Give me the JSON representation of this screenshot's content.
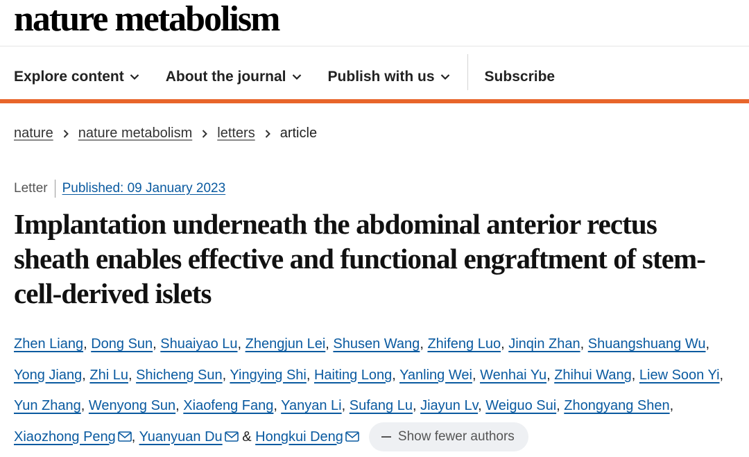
{
  "header": {
    "logo": "nature metabolism",
    "nav": [
      "Explore content",
      "About the journal",
      "Publish with us",
      "Subscribe"
    ]
  },
  "breadcrumbs": [
    "nature",
    "nature metabolism",
    "letters",
    "article"
  ],
  "article": {
    "type": "Letter",
    "published": "Published: 09 January 2023",
    "title": "Implantation underneath the abdominal anterior rectus sheath enables effective and functional engraftment of stem-cell-derived islets",
    "separator": ",",
    "final_separator": "&",
    "authors": [
      {
        "name": "Zhen Liang"
      },
      {
        "name": "Dong Sun"
      },
      {
        "name": "Shuaiyao Lu"
      },
      {
        "name": "Zhengjun Lei"
      },
      {
        "name": "Shusen Wang"
      },
      {
        "name": "Zhifeng Luo"
      },
      {
        "name": "Jinqin Zhan"
      },
      {
        "name": "Shuangshuang Wu"
      },
      {
        "name": "Yong Jiang"
      },
      {
        "name": "Zhi Lu"
      },
      {
        "name": "Shicheng Sun"
      },
      {
        "name": "Yingying Shi"
      },
      {
        "name": "Haiting Long"
      },
      {
        "name": "Yanling Wei"
      },
      {
        "name": "Wenhai Yu"
      },
      {
        "name": "Zhihui Wang"
      },
      {
        "name": "Liew Soon Yi"
      },
      {
        "name": "Yun Zhang"
      },
      {
        "name": "Wenyong Sun"
      },
      {
        "name": "Xiaofeng Fang"
      },
      {
        "name": "Yanyan Li"
      },
      {
        "name": "Sufang Lu"
      },
      {
        "name": "Jiayun Lv"
      },
      {
        "name": "Weiguo Sui"
      },
      {
        "name": "Zhongyang Shen"
      },
      {
        "name": "Xiaozhong Peng",
        "corresponding": true
      },
      {
        "name": "Yuanyuan Du",
        "corresponding": true
      },
      {
        "name": "Hongkui Deng",
        "corresponding": true
      }
    ],
    "toggle": "Show fewer authors"
  }
}
